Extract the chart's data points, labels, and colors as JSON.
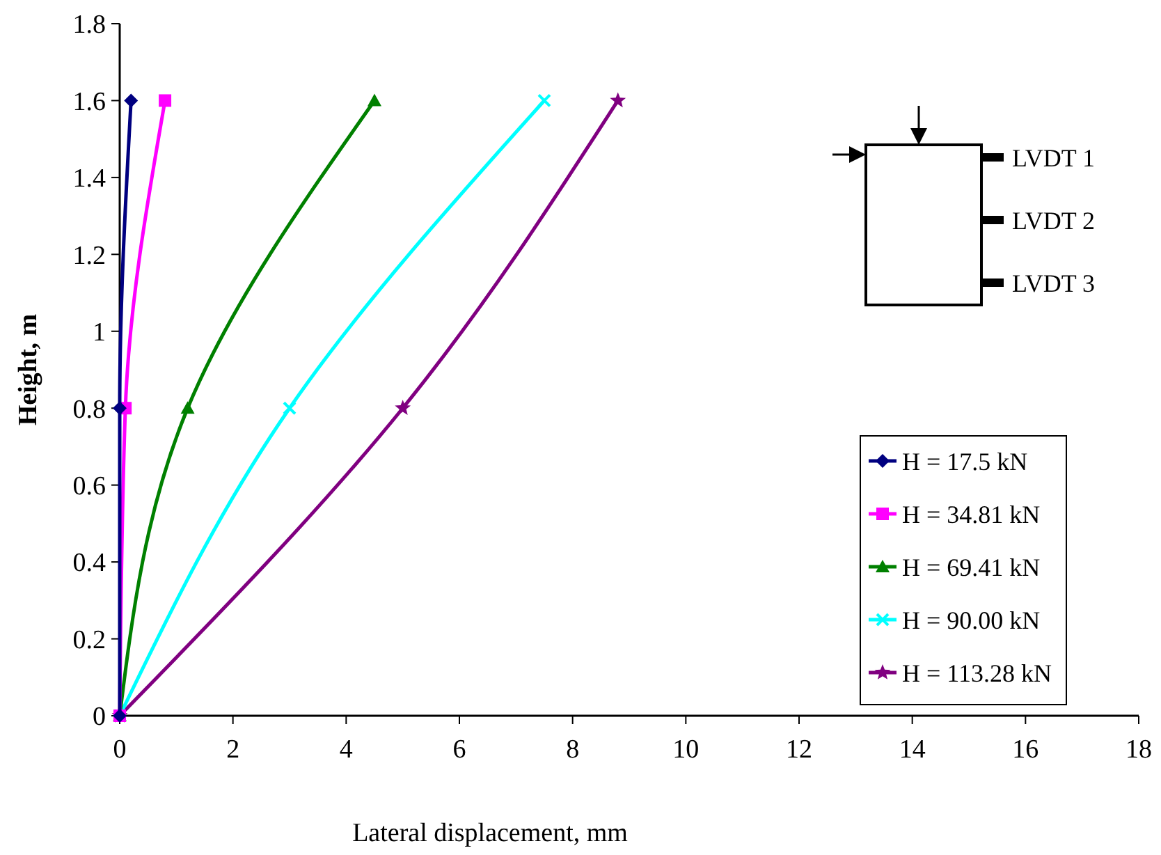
{
  "chart_data": {
    "type": "line",
    "xlabel": "Lateral displacement, mm",
    "ylabel": "Height, m",
    "xlim": [
      0,
      18
    ],
    "xticks": [
      0,
      2,
      4,
      6,
      8,
      10,
      12,
      14,
      16,
      18
    ],
    "ylim": [
      0,
      1.8
    ],
    "yticks": [
      0,
      0.2,
      0.4,
      0.6,
      0.8,
      1,
      1.2,
      1.4,
      1.6,
      1.8
    ],
    "grid": false,
    "legend": "right",
    "annotations": [
      "LVDT 1",
      "LVDT 2",
      "LVDT 3"
    ],
    "series": [
      {
        "name": "H = 17.5 kN",
        "color": "#000080",
        "marker": "diamond",
        "x": [
          0,
          0,
          0.2
        ],
        "values": [
          0,
          0.8,
          1.6
        ]
      },
      {
        "name": "H = 34.81 kN",
        "color": "#ff00ff",
        "marker": "square",
        "x": [
          0,
          0.1,
          0.8
        ],
        "values": [
          0,
          0.8,
          1.6
        ]
      },
      {
        "name": "H = 69.41 kN",
        "color": "#008000",
        "marker": "triangle",
        "x": [
          0,
          1.2,
          4.5
        ],
        "values": [
          0,
          0.8,
          1.6
        ]
      },
      {
        "name": "H = 90.00 kN",
        "color": "#00ffff",
        "marker": "cross",
        "x": [
          0,
          3,
          7.5
        ],
        "values": [
          0,
          0.8,
          1.6
        ]
      },
      {
        "name": "H = 113.28 kN",
        "color": "#800080",
        "marker": "star",
        "x": [
          0,
          5,
          8.8
        ],
        "values": [
          0,
          0.8,
          1.6
        ]
      }
    ]
  }
}
